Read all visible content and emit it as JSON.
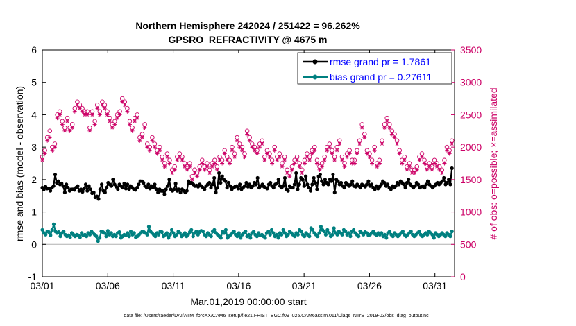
{
  "chart_data": {
    "type": "line",
    "title": "Northern Hemisphere 242024 / 251422 = 96.262%",
    "subtitle": "GPSRO_REFRACTIVITY @ 4675 m",
    "xlabel": "Mar.01,2019 00:00:00 start",
    "ylabel_left": "rmse and bias (model - observation)",
    "ylabel_right": "# of obs: o=possible; ×=assimilated",
    "footnote": "data file: /Users/raeder/DAI/ATM_forcXX/CAM6_setup/f.e21.FHIST_BGC.f09_025.CAM6assim.011/Diags_NTrS_2019-03/obs_diag_output.nc",
    "x_ticks": [
      "03/01",
      "03/06",
      "03/11",
      "03/16",
      "03/21",
      "03/26",
      "03/31"
    ],
    "x_tick_days": [
      0,
      5,
      10,
      15,
      20,
      25,
      30
    ],
    "xlim_days": [
      0,
      31.5
    ],
    "ylim_left": [
      -1,
      6
    ],
    "y_ticks_left": [
      "-1",
      "0",
      "1",
      "2",
      "3",
      "4",
      "5",
      "6"
    ],
    "ylim_right": [
      0,
      3500
    ],
    "y_ticks_right": [
      "0",
      "500",
      "1000",
      "1500",
      "2000",
      "2500",
      "3000",
      "3500"
    ],
    "legend": {
      "position": "top-right",
      "entries": [
        {
          "label": "rmse grand pr = 1.7861",
          "color": "#000000"
        },
        {
          "label": "bias grand pr = 0.27611",
          "color": "#008080"
        }
      ]
    },
    "colors": {
      "rmse": "#000000",
      "bias": "#008080",
      "obs": "#cc0066",
      "legend_text": "#0000ff",
      "zero_line": "#b0b0b0"
    },
    "series": [
      {
        "name": "rmse",
        "axis": "left",
        "values": [
          1.75,
          1.7,
          1.78,
          1.72,
          1.73,
          1.65,
          1.75,
          1.8,
          2.15,
          1.9,
          1.95,
          1.85,
          1.88,
          1.8,
          1.6,
          1.85,
          1.75,
          1.65,
          1.7,
          1.7,
          1.68,
          1.75,
          1.8,
          1.65,
          1.7,
          1.62,
          1.72,
          1.85,
          1.65,
          1.8,
          1.7,
          1.58,
          1.6,
          1.45,
          1.48,
          1.4,
          1.7,
          1.85,
          1.65,
          1.6,
          1.75,
          1.9,
          1.85,
          1.8,
          2.0,
          1.85,
          1.78,
          1.7,
          1.85,
          1.8,
          1.75,
          1.88,
          1.72,
          1.85,
          1.7,
          1.8,
          1.75,
          1.7,
          1.68,
          1.75,
          1.85,
          1.95,
          1.95,
          1.9,
          1.8,
          1.75,
          1.85,
          1.72,
          1.8,
          1.75,
          1.85,
          1.7,
          1.6,
          1.7,
          1.65,
          1.65,
          1.55,
          1.7,
          1.8,
          2.0,
          1.7,
          1.65,
          1.7,
          1.88,
          1.65,
          1.7,
          1.6,
          1.7,
          1.65,
          1.6,
          1.65,
          1.95,
          1.9,
          1.9,
          1.85,
          1.8,
          1.82,
          1.78,
          1.85,
          1.8,
          1.75,
          1.7,
          1.8,
          1.85,
          1.9,
          1.75,
          1.85,
          2.05,
          1.6,
          1.75,
          2.2,
          1.9,
          2.1,
          2.0,
          1.95,
          1.75,
          1.9,
          1.8,
          1.7,
          1.75,
          1.78,
          1.8,
          1.72,
          1.85,
          1.7,
          1.75,
          1.8,
          1.9,
          1.78,
          1.85,
          1.75,
          1.8,
          1.9,
          1.85,
          2.05,
          1.75,
          1.8,
          1.85,
          1.78,
          1.75,
          1.72,
          1.85,
          1.9,
          1.8,
          1.75,
          1.85,
          1.88,
          2.0,
          1.8,
          1.75,
          1.8,
          2.05,
          1.7,
          1.65,
          1.8,
          1.75,
          1.75,
          1.85,
          2.2,
          1.7,
          1.85,
          2.05,
          2.0,
          1.8,
          2.1,
          1.85,
          1.75,
          1.65,
          1.85,
          2.05,
          1.9,
          1.7,
          2.1,
          2.15,
          1.95,
          1.85,
          2.0,
          1.9,
          1.85,
          2.0,
          1.95,
          2.15,
          1.6,
          2.0,
          1.95,
          1.85,
          1.9,
          1.8,
          1.75,
          1.9,
          1.85,
          1.8,
          1.85,
          1.95,
          1.8,
          1.78,
          1.85,
          1.8,
          1.75,
          1.85,
          1.82,
          1.78,
          1.85,
          1.95,
          1.8,
          1.85,
          1.75,
          1.7,
          1.8,
          1.72,
          1.78,
          1.85,
          1.95,
          1.9,
          1.8,
          1.85,
          1.75,
          1.7,
          1.8,
          1.75,
          1.8,
          1.9,
          1.85,
          1.95,
          1.9,
          1.85,
          1.75,
          1.9,
          2.0,
          1.85,
          1.8,
          1.75,
          1.8,
          1.9,
          1.85,
          1.75,
          1.78,
          1.8,
          1.75,
          1.85,
          1.95,
          1.85,
          1.8,
          1.75,
          1.8,
          1.85,
          1.9,
          1.85,
          1.9,
          1.95,
          2.05,
          1.85,
          1.9,
          2.0,
          1.85,
          2.35
        ]
      },
      {
        "name": "bias",
        "axis": "left",
        "values": [
          0.45,
          0.35,
          0.3,
          0.4,
          0.38,
          0.28,
          0.45,
          0.62,
          0.4,
          0.35,
          0.38,
          0.25,
          0.35,
          0.4,
          0.3,
          0.25,
          0.28,
          0.22,
          0.35,
          0.3,
          0.25,
          0.3,
          0.28,
          0.22,
          0.35,
          0.28,
          0.3,
          0.25,
          0.35,
          0.3,
          0.4,
          0.35,
          0.3,
          0.25,
          0.1,
          0.2,
          0.4,
          0.38,
          0.35,
          0.25,
          0.42,
          0.3,
          0.35,
          0.25,
          0.3,
          0.25,
          0.35,
          0.38,
          0.2,
          0.25,
          0.3,
          0.28,
          0.35,
          0.25,
          0.4,
          0.3,
          0.35,
          0.22,
          0.25,
          0.3,
          0.35,
          0.4,
          0.38,
          0.35,
          0.3,
          0.55,
          0.4,
          0.35,
          0.3,
          0.25,
          0.35,
          0.3,
          0.4,
          0.38,
          0.25,
          0.3,
          0.35,
          0.2,
          0.3,
          0.45,
          0.35,
          0.25,
          0.3,
          0.4,
          0.35,
          0.25,
          0.3,
          0.35,
          0.25,
          0.3,
          0.38,
          0.45,
          0.25,
          0.35,
          0.4,
          0.3,
          0.38,
          0.42,
          0.4,
          0.3,
          0.25,
          0.35,
          0.3,
          0.25,
          0.4,
          0.45,
          0.35,
          0.3,
          0.25,
          0.2,
          0.4,
          0.35,
          0.45,
          0.2,
          0.25,
          0.3,
          0.35,
          0.4,
          0.3,
          0.25,
          0.35,
          0.2,
          0.3,
          0.35,
          0.4,
          0.25,
          0.3,
          0.2,
          0.35,
          0.4,
          0.3,
          0.25,
          0.35,
          0.28,
          0.3,
          0.25,
          0.2,
          0.35,
          0.4,
          0.3,
          0.45,
          0.35,
          0.25,
          0.3,
          0.2,
          0.35,
          0.3,
          0.45,
          0.35,
          0.25,
          0.3,
          0.4,
          0.35,
          0.3,
          0.25,
          0.35,
          0.3,
          0.45,
          0.4,
          0.3,
          0.25,
          0.35,
          0.3,
          0.25,
          0.5,
          0.45,
          0.35,
          0.3,
          0.25,
          0.35,
          0.55,
          0.45,
          0.4,
          0.3,
          0.45,
          0.35,
          0.25,
          0.3,
          0.5,
          0.35,
          0.3,
          0.4,
          0.35,
          0.3,
          0.45,
          0.4,
          0.3,
          0.35,
          0.25,
          0.4,
          0.45,
          0.35,
          0.3,
          0.25,
          0.4,
          0.35,
          0.3,
          0.38,
          0.35,
          0.28,
          0.3,
          0.35,
          0.4,
          0.32,
          0.28,
          0.35,
          0.3,
          0.35,
          0.25,
          0.3,
          0.2,
          0.35,
          0.4,
          0.3,
          0.25,
          0.35,
          0.3,
          0.25,
          0.3,
          0.35,
          0.4,
          0.3,
          0.25,
          0.3,
          0.35,
          0.4,
          0.3,
          0.25,
          0.3,
          0.35,
          0.4,
          0.3,
          0.25,
          0.3,
          0.35,
          0.3,
          0.4,
          0.35,
          0.3,
          0.2,
          0.35,
          0.3,
          0.25,
          0.3,
          0.35,
          0.3,
          0.25,
          0.35,
          0.3,
          0.25,
          0.4
        ]
      },
      {
        "name": "obs_possible",
        "axis": "right",
        "marker": "circle",
        "values": [
          1850,
          1950,
          2150,
          2250,
          2000,
          2050,
          2500,
          2550,
          2400,
          2300,
          2450,
          2300,
          2350,
          2600,
          2700,
          2650,
          2600,
          2550,
          2550,
          2300,
          2550,
          2400,
          2650,
          2550,
          2700,
          2650,
          2550,
          2450,
          2350,
          2400,
          2500,
          2550,
          2750,
          2700,
          2600,
          2400,
          2300,
          2450,
          2500,
          2150,
          2200,
          2350,
          2050,
          2000,
          2150,
          2050,
          1950,
          2000,
          1850,
          1750,
          1900,
          1800,
          1650,
          1700,
          1850,
          1900,
          1850,
          1750,
          1700,
          1750,
          1550,
          1650,
          1600,
          1700,
          1800,
          1700,
          1750,
          1650,
          1750,
          1800,
          1700,
          1850,
          1800,
          1950,
          1850,
          1800,
          2000,
          1900,
          2150,
          2050,
          2000,
          1900,
          2250,
          2150,
          2050,
          2000,
          1950,
          2050,
          2100,
          1850,
          1950,
          1900,
          1800,
          2000,
          1850,
          1900,
          1750,
          1850,
          1650,
          1600,
          1700,
          1800,
          1850,
          1750,
          1650,
          1800,
          1900,
          1850,
          1950,
          2000,
          1800,
          1700,
          1750,
          1850,
          2000,
          2050,
          1950,
          1850,
          2000,
          2100,
          1850,
          1750,
          1900,
          1950,
          1800,
          1800,
          1950,
          2100,
          2350,
          2200,
          1950,
          1900,
          1800,
          2000,
          1750,
          1800,
          2100,
          2350,
          2450,
          2350,
          2250,
          2200,
          2100,
          1950,
          1800,
          1850,
          1700,
          1750,
          1650,
          1650,
          1700,
          1850,
          1900,
          1800,
          1700,
          1750,
          1700,
          1800,
          1750,
          1700,
          1650,
          1800,
          2000,
          1950,
          2100
        ]
      },
      {
        "name": "obs_assimilated",
        "axis": "right",
        "marker": "star",
        "values": [
          1800,
          1900,
          2100,
          2150,
          1950,
          2000,
          2450,
          2500,
          2350,
          2250,
          2400,
          2250,
          2300,
          2550,
          2650,
          2600,
          2550,
          2500,
          2500,
          2250,
          2500,
          2350,
          2600,
          2500,
          2650,
          2600,
          2500,
          2400,
          2300,
          2350,
          2450,
          2500,
          2700,
          2650,
          2550,
          2350,
          2250,
          2400,
          2450,
          2100,
          2150,
          2300,
          2000,
          1950,
          2100,
          2000,
          1900,
          1950,
          1800,
          1700,
          1850,
          1750,
          1600,
          1650,
          1800,
          1850,
          1800,
          1700,
          1650,
          1700,
          1500,
          1600,
          1550,
          1650,
          1750,
          1650,
          1700,
          1600,
          1700,
          1750,
          1650,
          1800,
          1750,
          1900,
          1800,
          1750,
          1950,
          1850,
          2100,
          2000,
          1950,
          1850,
          2200,
          2100,
          2000,
          1950,
          1900,
          2000,
          2050,
          1800,
          1900,
          1850,
          1750,
          1950,
          1800,
          1850,
          1700,
          1800,
          1600,
          1550,
          1650,
          1750,
          1800,
          1700,
          1600,
          1750,
          1850,
          1800,
          1900,
          1950,
          1750,
          1650,
          1700,
          1800,
          1950,
          2000,
          1900,
          1800,
          1950,
          2050,
          1800,
          1700,
          1850,
          1900,
          1750,
          1750,
          1900,
          2050,
          2300,
          2150,
          1900,
          1850,
          1750,
          1950,
          1700,
          1750,
          2050,
          2300,
          2400,
          2300,
          2200,
          2150,
          2050,
          1900,
          1750,
          1800,
          1650,
          1700,
          1600,
          1600,
          1650,
          1800,
          1850,
          1750,
          1650,
          1700,
          1650,
          1750,
          1700,
          1650,
          1600,
          1750,
          1950,
          1900,
          2050
        ]
      }
    ]
  }
}
